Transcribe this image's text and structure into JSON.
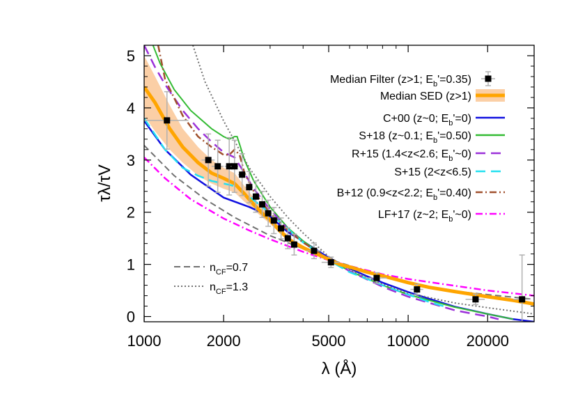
{
  "chart_data": {
    "type": "line",
    "xlabel": "λ (Å)",
    "ylabel": "τλ/τV",
    "x_scale": "log",
    "xlim": [
      1000,
      30000
    ],
    "ylim": [
      -0.1,
      5.2
    ],
    "x_ticks": [
      1000,
      2000,
      5000,
      10000,
      20000
    ],
    "x_tick_labels": [
      "1000",
      "2000",
      "5000",
      "10000",
      "20000"
    ],
    "y_ticks": [
      0,
      1,
      2,
      3,
      4,
      5
    ],
    "y_tick_labels": [
      "0",
      "1",
      "2",
      "3",
      "4",
      "5"
    ],
    "grid": false,
    "legend_position": "right",
    "colors": {
      "filter": "#000000",
      "errorbar": "#b0b0b0",
      "median_sed": "#ffa500",
      "median_band": "#fbcfa6",
      "cf_ref": "#707070"
    },
    "legend": [
      {
        "text": "Median Filter (z>1; E",
        "sub": "b",
        "tail": "'=0.35)",
        "key": "filter"
      },
      {
        "text": "Median SED (z>1)",
        "sub": "",
        "tail": "",
        "key": "band"
      },
      {
        "text": "C+00 (z~0; E",
        "sub": "b",
        "tail": "'=0)",
        "key": "line",
        "color": "#1010e0",
        "dash": ""
      },
      {
        "text": "S+18 (z~0.1; E",
        "sub": "b",
        "tail": "'=0.50)",
        "key": "line",
        "color": "#33bb33",
        "dash": ""
      },
      {
        "text": "R+15 (1.4<z<2.6; E",
        "sub": "b",
        "tail": "'~0)",
        "key": "line",
        "color": "#9b30d9",
        "dash": "14,8"
      },
      {
        "text": "S+15 (2<z<6.5)",
        "sub": "",
        "tail": "",
        "key": "line",
        "color": "#22e0f0",
        "dash": "14,8"
      },
      {
        "text": "B+12 (0.9<z<2.2; E",
        "sub": "b",
        "tail": "'=0.40)",
        "key": "line",
        "color": "#a0502d",
        "dash": "10,4,2,4"
      },
      {
        "text": "LF+17 (z~2; E",
        "sub": "b",
        "tail": "'~0)",
        "key": "line",
        "color": "#ff00ff",
        "dash": "10,4,2,4"
      }
    ],
    "cf_legend": [
      {
        "text": "n",
        "sub": "CF",
        "tail": "=0.7",
        "dash": "9,5"
      },
      {
        "text": "n",
        "sub": "CF",
        "tail": "=1.3",
        "dash": "2,3"
      }
    ],
    "median_sed": {
      "x": [
        1000,
        1100,
        1250,
        1400,
        1600,
        1800,
        2000,
        2200,
        2400,
        2600,
        2800,
        3000,
        3300,
        3600,
        4000,
        4500,
        5000,
        5500,
        6000,
        7000,
        8000,
        10000,
        12000,
        15000,
        20000,
        25000,
        30000
      ],
      "y": [
        4.4,
        4.1,
        3.6,
        3.25,
        2.95,
        2.75,
        2.65,
        2.55,
        2.35,
        2.15,
        1.98,
        1.85,
        1.62,
        1.45,
        1.32,
        1.2,
        1.1,
        1.0,
        0.95,
        0.85,
        0.78,
        0.65,
        0.56,
        0.48,
        0.38,
        0.31,
        0.24
      ],
      "lower": [
        3.85,
        3.55,
        3.2,
        2.95,
        2.7,
        2.55,
        2.45,
        2.38,
        2.2,
        2.05,
        1.9,
        1.78,
        1.57,
        1.41,
        1.28,
        1.17,
        1.07,
        0.98,
        0.92,
        0.82,
        0.75,
        0.62,
        0.53,
        0.45,
        0.35,
        0.28,
        0.21
      ],
      "upper": [
        5.0,
        4.6,
        4.05,
        3.6,
        3.25,
        3.0,
        2.85,
        2.75,
        2.5,
        2.28,
        2.08,
        1.93,
        1.68,
        1.5,
        1.36,
        1.23,
        1.13,
        1.03,
        0.98,
        0.88,
        0.81,
        0.68,
        0.59,
        0.51,
        0.41,
        0.34,
        0.27
      ]
    },
    "median_filter": {
      "x": [
        1220,
        1750,
        1900,
        2100,
        2200,
        2350,
        2500,
        2650,
        2800,
        2950,
        3100,
        3300,
        3500,
        3700,
        4400,
        5100,
        7600,
        10800,
        18000,
        27000
      ],
      "y": [
        3.76,
        3.0,
        2.88,
        2.88,
        2.88,
        2.72,
        2.48,
        2.3,
        2.15,
        1.98,
        1.84,
        1.69,
        1.5,
        1.38,
        1.26,
        1.04,
        0.74,
        0.52,
        0.33,
        0.33
      ],
      "yerr": [
        0.55,
        0.5,
        0.5,
        0.55,
        0.5,
        0.4,
        0.3,
        0.3,
        0.25,
        0.25,
        0.25,
        0.2,
        0.2,
        0.2,
        0.15,
        0.1,
        0.1,
        0.1,
        0.1,
        0.85
      ],
      "xerr": [
        250,
        100,
        100,
        80,
        70,
        80,
        80,
        90,
        90,
        90,
        90,
        100,
        100,
        120,
        300,
        400,
        700,
        600,
        1500,
        2000
      ]
    },
    "series": [
      {
        "name": "C+00 (z~0; Eb'=0)",
        "color": "#1010e0",
        "dash": "",
        "width": 2.5,
        "x": [
          1000,
          1200,
          1500,
          2000,
          2500,
          3000,
          3500,
          4000,
          5000,
          6000,
          7000,
          8000,
          10000,
          12000,
          15000,
          20000,
          25000,
          30000
        ],
        "y": [
          3.75,
          3.2,
          2.72,
          2.28,
          2.1,
          1.92,
          1.62,
          1.44,
          1.13,
          0.92,
          0.77,
          0.65,
          0.47,
          0.34,
          0.19,
          0.05,
          -0.05,
          -0.1
        ]
      },
      {
        "name": "S+18 (z~0.1; Eb'=0.50)",
        "color": "#33bb33",
        "dash": "",
        "width": 2,
        "x": [
          1080,
          1150,
          1300,
          1500,
          1800,
          2000,
          2100,
          2200,
          2250,
          2300,
          2400,
          2600,
          3000,
          3500,
          4000,
          5000,
          6000,
          8000,
          10000,
          15000,
          20000,
          25000
        ],
        "y": [
          5.2,
          4.85,
          4.35,
          3.95,
          3.6,
          3.45,
          3.4,
          3.45,
          3.45,
          3.3,
          3.0,
          2.6,
          2.1,
          1.7,
          1.45,
          1.1,
          0.87,
          0.6,
          0.42,
          0.18,
          0.05,
          -0.05
        ]
      },
      {
        "name": "R+15 (1.4<z<2.6; Eb'~0)",
        "color": "#9b30d9",
        "dash": "14,8",
        "width": 2.5,
        "x": [
          1000,
          1100,
          1200,
          1400,
          1600,
          1800,
          2000,
          2200,
          2400,
          2600,
          3000,
          3500,
          4000,
          5000,
          6000,
          8000,
          10000,
          15000,
          20000,
          22000
        ],
        "y": [
          5.2,
          4.78,
          4.45,
          3.95,
          3.6,
          3.35,
          3.15,
          3.05,
          2.75,
          2.45,
          2.05,
          1.68,
          1.42,
          1.1,
          0.87,
          0.57,
          0.38,
          0.12,
          0.0,
          -0.05
        ]
      },
      {
        "name": "S+15 (2<z<6.5)",
        "color": "#22e0f0",
        "dash": "14,8",
        "width": 2.5,
        "x": [
          1000,
          1200,
          1400,
          1600,
          1800,
          2000,
          2200,
          2500,
          3000,
          3500,
          4000,
          5000,
          6000,
          7000,
          8000,
          10000,
          12000,
          14000
        ],
        "y": [
          3.8,
          3.2,
          2.85,
          2.7,
          2.6,
          2.55,
          2.5,
          2.3,
          1.98,
          1.68,
          1.42,
          1.08,
          0.85,
          0.72,
          0.6,
          0.42,
          0.28,
          0.18
        ]
      },
      {
        "name": "B+12 (0.9<z<2.2; Eb'=0.40)",
        "color": "#a0502d",
        "dash": "10,4,2,4",
        "width": 2.5,
        "x": [
          1130,
          1200,
          1400,
          1600,
          1800,
          2000,
          2100,
          2200,
          2300,
          2400,
          2600,
          3000,
          3500,
          4000,
          5000,
          5500,
          6000
        ],
        "y": [
          5.2,
          4.55,
          3.85,
          3.45,
          3.25,
          3.1,
          3.1,
          3.2,
          3.1,
          2.75,
          2.4,
          1.98,
          1.65,
          1.42,
          1.1,
          1.0,
          0.95
        ]
      },
      {
        "name": "LF+17 (z~2; Eb'~0)",
        "color": "#ff00ff",
        "dash": "10,4,2,4",
        "width": 2.5,
        "x": [
          1000,
          1200,
          1500,
          2000,
          2500,
          3000,
          4000,
          5000,
          6000,
          8000,
          10000,
          15000,
          20000,
          30000
        ],
        "y": [
          3.05,
          2.65,
          2.25,
          1.88,
          1.65,
          1.48,
          1.24,
          1.08,
          0.97,
          0.81,
          0.72,
          0.59,
          0.5,
          0.4
        ]
      },
      {
        "name": "nCF=0.7",
        "color": "#707070",
        "dash": "9,5",
        "width": 2,
        "x": [
          1000,
          1300,
          1700,
          2200,
          3000,
          4000,
          5000,
          6500,
          8000,
          10000,
          14000,
          20000,
          30000
        ],
        "y": [
          3.28,
          2.7,
          2.25,
          1.9,
          1.55,
          1.3,
          1.1,
          0.92,
          0.78,
          0.65,
          0.5,
          0.42,
          0.33
        ]
      },
      {
        "name": "nCF=1.3",
        "color": "#707070",
        "dash": "2,3",
        "width": 2,
        "x": [
          1530,
          1700,
          2000,
          2500,
          3000,
          3500,
          4000,
          5000,
          6000,
          8000,
          10000,
          15000,
          20000,
          30000
        ],
        "y": [
          5.2,
          4.5,
          3.75,
          2.85,
          2.3,
          1.9,
          1.6,
          1.15,
          0.9,
          0.62,
          0.45,
          0.26,
          0.17,
          0.05
        ]
      }
    ]
  }
}
